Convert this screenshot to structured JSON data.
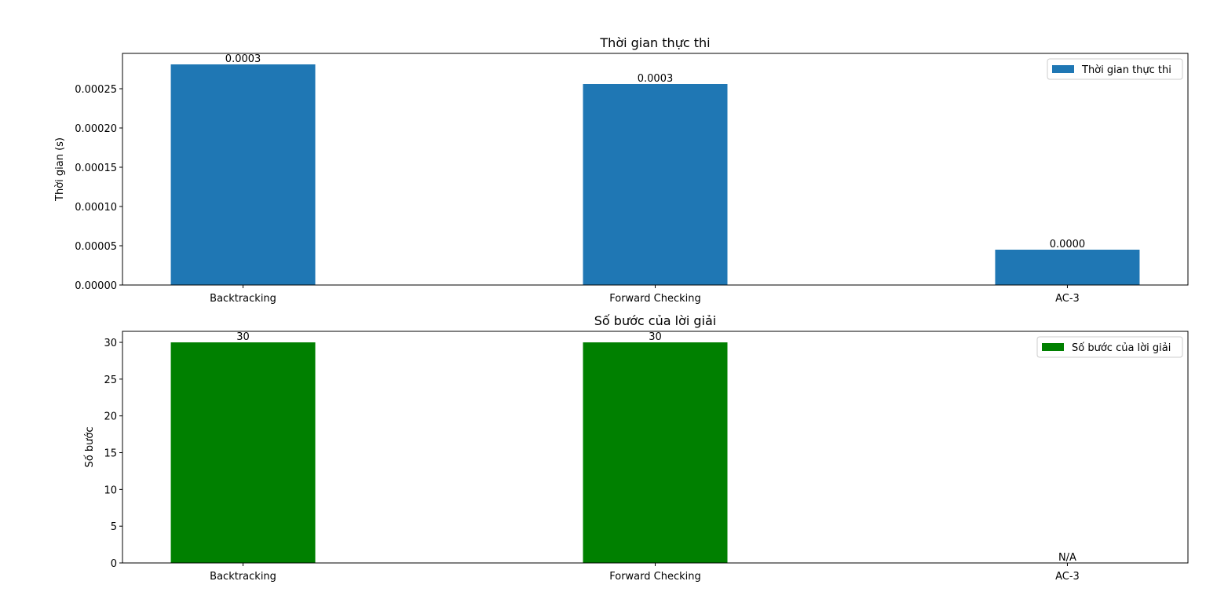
{
  "chart_data": [
    {
      "type": "bar",
      "title": "Thời gian thực thi",
      "xlabel": "",
      "ylabel": "Thời gian (s)",
      "categories": [
        "Backtracking",
        "Forward Checking",
        "AC-3"
      ],
      "series": [
        {
          "name": "Thời gian thực thi",
          "color": "#1f77b4",
          "values": [
            0.000281,
            0.000256,
            4.5e-05
          ],
          "data_labels": [
            "0.0003",
            "0.0003",
            "0.0000"
          ]
        }
      ],
      "ylim": [
        0,
        0.000295
      ],
      "yticks": [
        0,
        5e-05,
        0.0001,
        0.00015,
        0.0002,
        0.00025
      ],
      "ytick_labels": [
        "0.00000",
        "0.00005",
        "0.00010",
        "0.00015",
        "0.00020",
        "0.00025"
      ],
      "grid": false,
      "legend_position": "top-right"
    },
    {
      "type": "bar",
      "title": "Số bước của lời giải",
      "xlabel": "",
      "ylabel": "Số bước",
      "categories": [
        "Backtracking",
        "Forward Checking",
        "AC-3"
      ],
      "series": [
        {
          "name": "Số bước của lời giải",
          "color": "#008000",
          "values": [
            30,
            30,
            0
          ],
          "data_labels": [
            "30",
            "30",
            "N/A"
          ]
        }
      ],
      "ylim": [
        0,
        31.5
      ],
      "yticks": [
        0,
        5,
        10,
        15,
        20,
        25,
        30
      ],
      "ytick_labels": [
        "0",
        "5",
        "10",
        "15",
        "20",
        "25",
        "30"
      ],
      "grid": false,
      "legend_position": "top-right"
    }
  ]
}
